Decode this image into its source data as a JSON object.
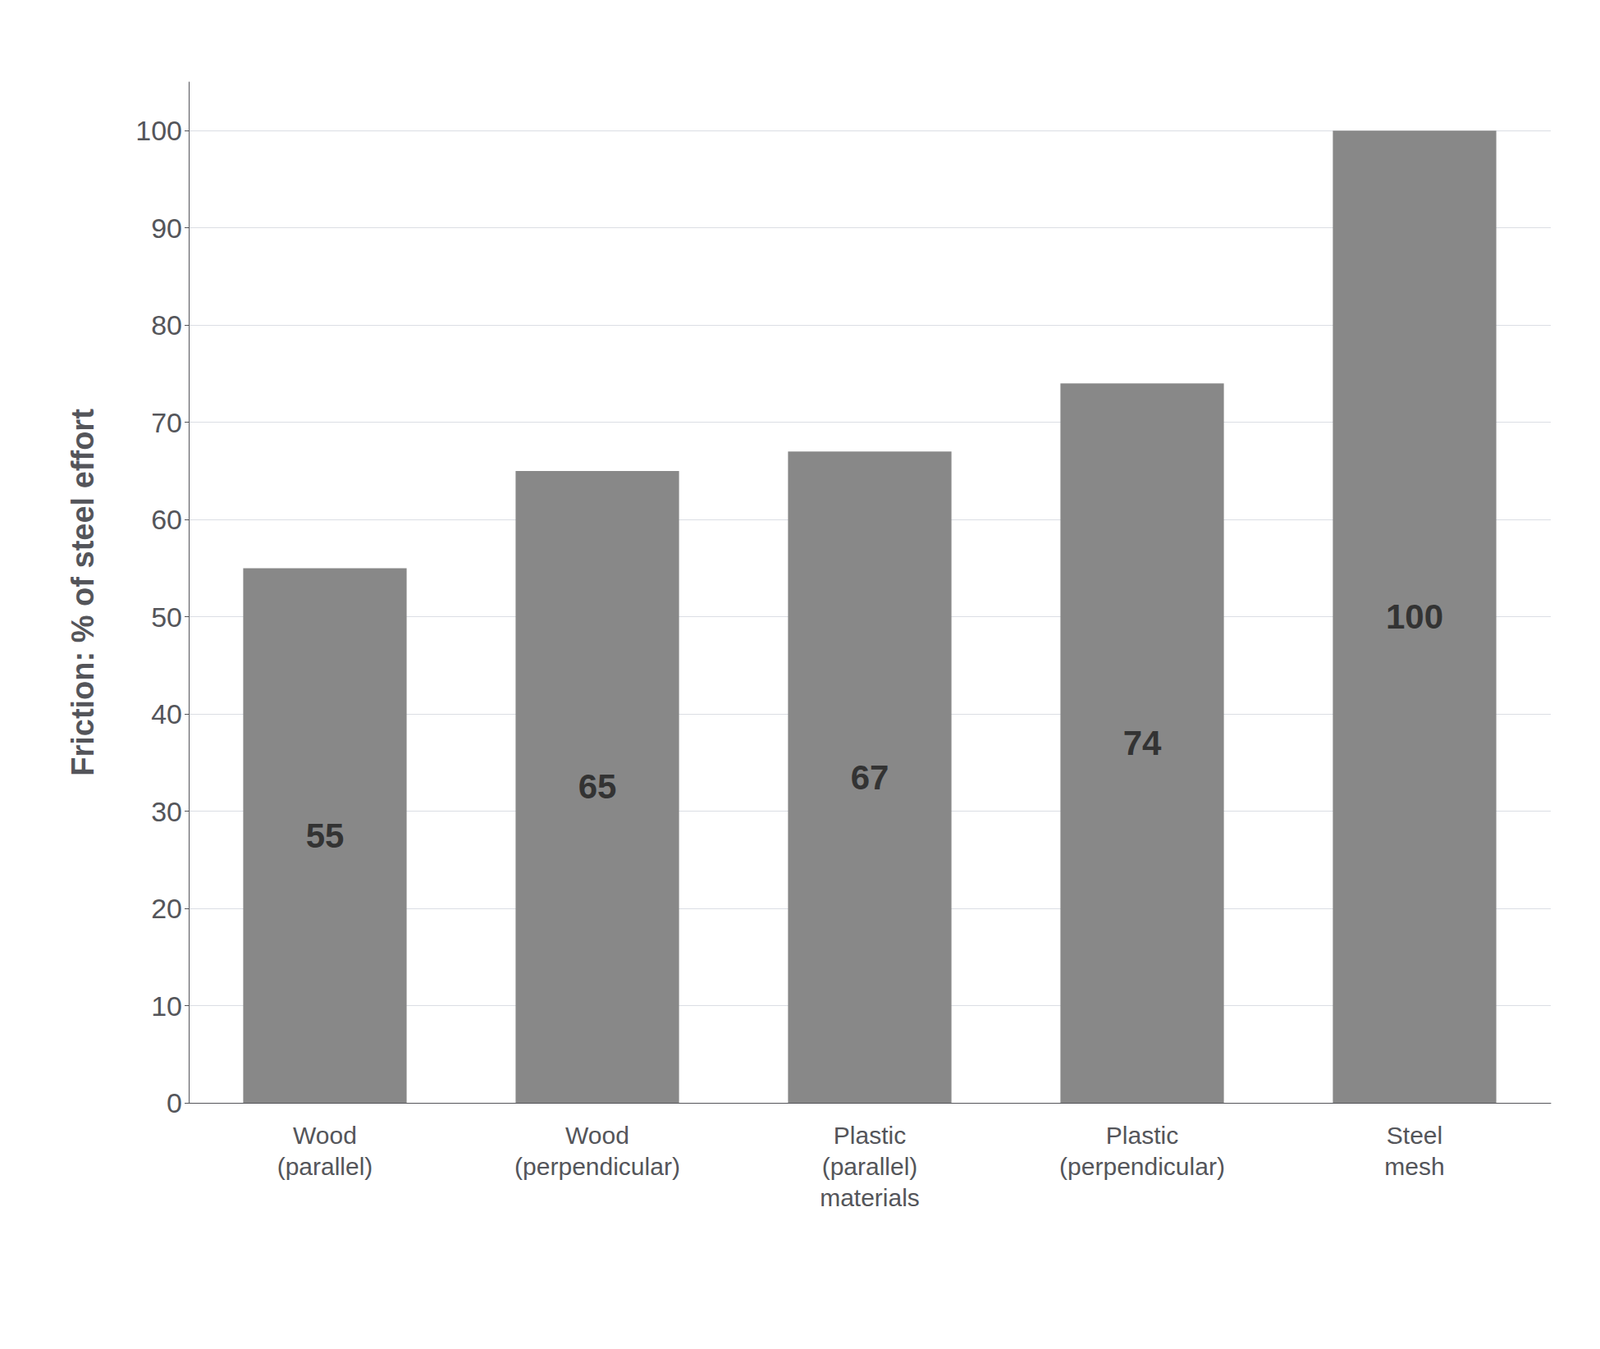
{
  "chart_data": {
    "type": "bar",
    "categories": [
      "Wood\n(parallel)",
      "Wood\n(perpendicular)",
      "Plastic\n(parallel)\nmaterials",
      "Plastic\n(perpendicular)",
      "Steel\nmesh"
    ],
    "values": [
      55,
      65,
      67,
      74,
      100
    ],
    "color": "#888888",
    "ylabel": "Friction: % of steel effort",
    "ylim": [
      0,
      105
    ],
    "yticks": [
      0,
      10,
      20,
      30,
      40,
      50,
      60,
      70,
      80,
      90,
      100
    ],
    "grid": true,
    "data_labels": true
  }
}
